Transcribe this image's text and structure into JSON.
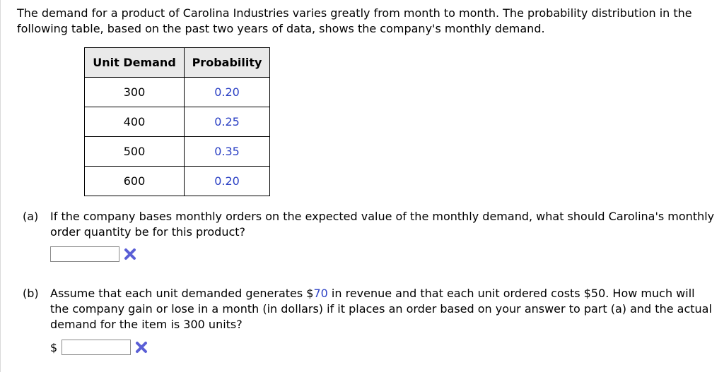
{
  "intro": "The demand for a product of Carolina Industries varies greatly from month to month. The probability distribution in the following table, based on the past two years of data, shows the company's monthly demand.",
  "table": {
    "headers": [
      "Unit Demand",
      "Probability"
    ],
    "rows": [
      {
        "demand": "300",
        "probability": "0.20"
      },
      {
        "demand": "400",
        "probability": "0.25"
      },
      {
        "demand": "500",
        "probability": "0.35"
      },
      {
        "demand": "600",
        "probability": "0.20"
      }
    ]
  },
  "part_a": {
    "tag": "(a)",
    "question": "If the company bases monthly orders on the expected value of the monthly demand, what should Carolina's monthly order quantity be for this product?",
    "answer_value": "",
    "status_icon": "x-mark-icon"
  },
  "part_b": {
    "tag": "(b)",
    "question_pre": "Assume that each unit demanded generates $",
    "revenue": "70",
    "question_post": " in revenue and that each unit ordered costs $50. How much will the company gain or lose in a month (in dollars) if it places an order based on your answer to part (a) and the actual demand for the item is 300 units?",
    "currency": "$",
    "answer_value": "",
    "status_icon": "x-mark-icon"
  },
  "colors": {
    "accent_blue": "#2b40c4",
    "wrong_mark": "#5a5fd6"
  }
}
